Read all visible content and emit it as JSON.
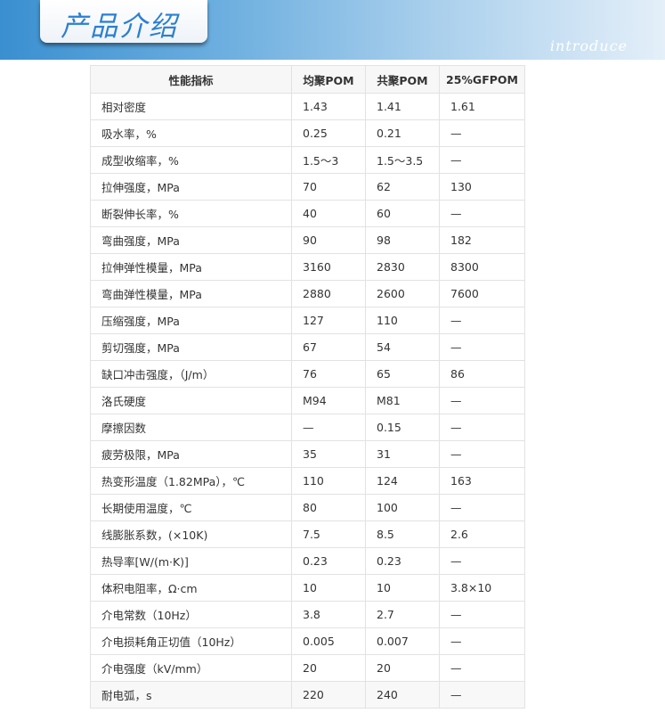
{
  "banner": {
    "title": "产品介绍",
    "subtitle": "introduce"
  },
  "table": {
    "headers": [
      "性能指标",
      "均聚POM",
      "共聚POM",
      "25%GFPOM"
    ],
    "rows": [
      [
        "相对密度",
        "1.43",
        "1.41",
        "1.61"
      ],
      [
        "吸水率，%",
        "0.25",
        "0.21",
        "—"
      ],
      [
        "成型收缩率，%",
        "1.5～3",
        "1.5～3.5",
        "—"
      ],
      [
        "拉伸强度，MPa",
        "70",
        "62",
        "130"
      ],
      [
        "断裂伸长率，%",
        "40",
        "60",
        "—"
      ],
      [
        "弯曲强度，MPa",
        "90",
        "98",
        "182"
      ],
      [
        "拉伸弹性模量，MPa",
        "3160",
        "2830",
        "8300"
      ],
      [
        "弯曲弹性模量，MPa",
        "2880",
        "2600",
        "7600"
      ],
      [
        "压缩强度，MPa",
        "127",
        "110",
        "—"
      ],
      [
        "剪切强度，MPa",
        "67",
        "54",
        "—"
      ],
      [
        "缺口冲击强度，（J/m）",
        "76",
        "65",
        "86"
      ],
      [
        "洛氏硬度",
        "M94",
        "M81",
        "—"
      ],
      [
        "摩擦因数",
        "—",
        "0.15",
        "—"
      ],
      [
        "疲劳极限，MPa",
        "35",
        "31",
        "—"
      ],
      [
        "热变形温度（1.82MPa），℃",
        "110",
        "124",
        "163"
      ],
      [
        "长期使用温度，℃",
        "80",
        "100",
        "—"
      ],
      [
        "线膨胀系数，(×10K)",
        "7.5",
        "8.5",
        "2.6"
      ],
      [
        "热导率[W/(m·K)]",
        "0.23",
        "0.23",
        "—"
      ],
      [
        "体积电阻率，Ω·cm",
        "10",
        "10",
        "3.8×10"
      ],
      [
        "介电常数（10Hz）",
        "3.8",
        "2.7",
        "—"
      ],
      [
        "介电损耗角正切值（10Hz）",
        "0.005",
        "0.007",
        "—"
      ],
      [
        "介电强度（kV/mm）",
        "20",
        "20",
        "—"
      ],
      [
        "耐电弧，s",
        "220",
        "240",
        "—"
      ]
    ]
  }
}
